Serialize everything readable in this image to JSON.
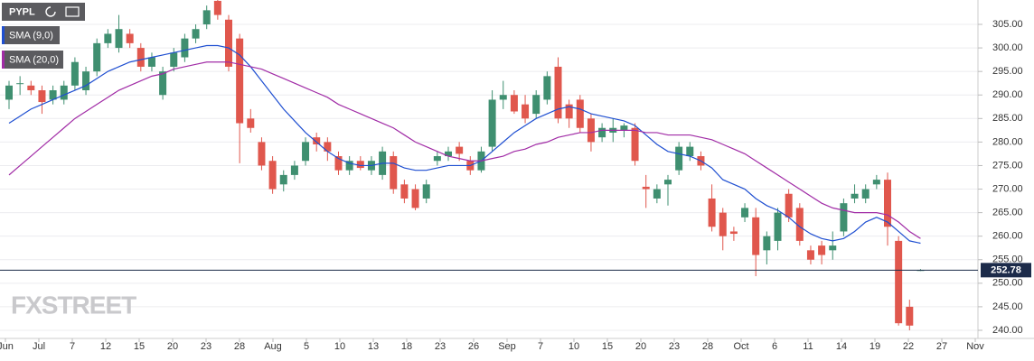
{
  "chart_data": {
    "type": "candlestick",
    "title": "PYPL",
    "colors": {
      "up": "#3f8f70",
      "down": "#e0574d"
    },
    "series": [
      {
        "name": "PYPL",
        "open": [
          289,
          292.5,
          292,
          291,
          289,
          289,
          292,
          291,
          295,
          301,
          300,
          303,
          300,
          296,
          290,
          296,
          298,
          302,
          305,
          310,
          306,
          302,
          285,
          280,
          276,
          271,
          273,
          276,
          281,
          280,
          277,
          274,
          276,
          274,
          273,
          277,
          271,
          270,
          268,
          276,
          277,
          279,
          276,
          274,
          279,
          289,
          290,
          288,
          286,
          289,
          296,
          288,
          289,
          285,
          281,
          282,
          282.5,
          283,
          270.5,
          268,
          271,
          274,
          277,
          277,
          268,
          265,
          261,
          264,
          264,
          257,
          259,
          269,
          266,
          257,
          258,
          257,
          261,
          268,
          268,
          271,
          272,
          259,
          245,
          252.8
        ],
        "high": [
          293,
          294,
          293,
          292,
          292,
          293,
          298,
          296,
          302,
          304,
          307,
          304,
          301,
          299,
          296,
          300,
          303,
          305,
          309,
          311,
          307,
          303,
          287,
          281,
          277,
          274,
          276,
          281,
          282,
          281,
          278,
          277,
          277,
          277,
          279,
          278,
          272,
          271,
          272,
          278,
          279,
          280,
          277,
          279,
          291,
          293,
          291,
          290,
          291,
          295,
          298,
          289,
          290,
          286,
          284,
          285,
          284,
          284,
          273,
          271,
          273,
          280,
          280,
          278,
          271,
          266,
          262,
          267,
          266,
          261,
          266,
          270,
          267,
          258,
          259,
          261,
          268,
          271,
          271,
          273,
          273.5,
          260,
          246.5,
          253
        ],
        "low": [
          287,
          290,
          290,
          286,
          288,
          288,
          291,
          290,
          294,
          300,
          299,
          300,
          295,
          295,
          289,
          295,
          297,
          301,
          304,
          306,
          295,
          275.5,
          282,
          274,
          269,
          269.5,
          272,
          275,
          278,
          276,
          273,
          273,
          274,
          273,
          272,
          269,
          267,
          265.5,
          267,
          275,
          276,
          276,
          273,
          273.5,
          278,
          287,
          286,
          284,
          285,
          288,
          284,
          283,
          282,
          278,
          280,
          280,
          281,
          275,
          266,
          267,
          266.5,
          273,
          276,
          274,
          261,
          257,
          259,
          263,
          251.5,
          254,
          257,
          263,
          258,
          254,
          254,
          255,
          260,
          267,
          267,
          270,
          258,
          241,
          240,
          252.6
        ],
        "close": [
          292,
          292.5,
          291,
          288.5,
          291,
          292,
          297,
          295,
          301,
          303,
          304,
          301,
          296,
          298,
          295,
          299,
          302,
          304,
          308,
          307,
          296,
          284,
          283,
          275,
          270,
          273,
          275,
          280,
          279.5,
          278,
          274,
          276,
          274.5,
          276,
          278,
          270,
          268,
          266,
          271,
          277,
          278,
          277.5,
          274,
          278,
          289,
          290,
          286.5,
          285,
          290,
          294,
          285,
          285,
          283,
          280,
          283,
          283,
          283.5,
          276,
          270,
          270,
          272,
          279,
          279,
          275,
          262,
          260,
          260.5,
          266,
          256,
          260,
          265,
          264,
          259,
          255,
          256,
          258,
          267,
          269,
          270,
          272,
          262,
          241.5,
          241,
          252.8
        ]
      }
    ],
    "indicators": [
      {
        "name": "SMA (9,0)",
        "color": "#1f4fd1",
        "values": [
          284,
          285.5,
          287,
          288,
          289,
          290,
          291,
          292,
          293.5,
          295,
          296,
          297,
          297.5,
          298,
          298.5,
          299,
          299.5,
          300,
          300.5,
          300.5,
          300,
          298.5,
          296,
          293,
          290,
          287,
          284.5,
          282,
          280,
          278,
          276.5,
          275.5,
          275,
          275,
          275.5,
          275.5,
          274.5,
          274,
          274,
          274.5,
          275,
          275,
          275,
          276,
          278,
          280,
          282,
          283.5,
          285,
          286,
          287,
          287.5,
          287,
          286,
          285.5,
          285,
          284.5,
          283.5,
          281.5,
          279.5,
          278,
          277.5,
          277,
          276,
          274.5,
          272,
          271,
          270,
          268,
          266.5,
          265.5,
          264,
          262,
          260.5,
          259.5,
          259,
          259.5,
          261,
          263,
          264,
          263,
          261,
          259,
          258.5
        ]
      },
      {
        "name": "SMA (20,0)",
        "color": "#a12ca6",
        "values": [
          273,
          275,
          277,
          279,
          281,
          283,
          285,
          286.5,
          288,
          289.5,
          291,
          292,
          293,
          294,
          294.5,
          295.5,
          296,
          296.5,
          297,
          297,
          297,
          296.5,
          296,
          295.5,
          294.5,
          293.5,
          292.5,
          291.5,
          290.5,
          289.5,
          288,
          287,
          286,
          285,
          284,
          283,
          281.5,
          280,
          279,
          278,
          277,
          276.5,
          276,
          276,
          276.5,
          277,
          278,
          278.5,
          279.5,
          280,
          281,
          281.5,
          282,
          282,
          282.5,
          282.5,
          282.5,
          282.5,
          282,
          282,
          281.5,
          281.5,
          281.5,
          281,
          280.5,
          279.5,
          278.5,
          277.5,
          276,
          274.5,
          273,
          271.5,
          270,
          268.5,
          267,
          266,
          265.5,
          265,
          265,
          265,
          264.5,
          263,
          261,
          259.5
        ]
      }
    ],
    "last_price": 252.78,
    "xtick_labels": [
      "Jun",
      "Jul",
      "7",
      "12",
      "15",
      "20",
      "23",
      "28",
      "Aug",
      "5",
      "10",
      "13",
      "18",
      "23",
      "26",
      "Sep",
      "7",
      "10",
      "15",
      "20",
      "23",
      "28",
      "Oct",
      "6",
      "11",
      "14",
      "19",
      "22",
      "27",
      "Nov"
    ],
    "ylim": [
      238.27,
      310.18
    ],
    "yticks": [
      {
        "value": 240,
        "label": "240.00"
      },
      {
        "value": 245,
        "label": "245.00"
      },
      {
        "value": 250,
        "label": "250.00"
      },
      {
        "value": 255,
        "label": "255.00"
      },
      {
        "value": 260,
        "label": "260.00"
      },
      {
        "value": 265,
        "label": "265.00"
      },
      {
        "value": 270,
        "label": "270.00"
      },
      {
        "value": 275,
        "label": "275.00"
      },
      {
        "value": 280,
        "label": "280.00"
      },
      {
        "value": 285,
        "label": "285.00"
      },
      {
        "value": 290,
        "label": "290.00"
      },
      {
        "value": 295,
        "label": "295.00"
      },
      {
        "value": 300,
        "label": "300.00"
      },
      {
        "value": 305,
        "label": "305.00"
      }
    ],
    "grid": true,
    "watermark": "FXSTREET"
  }
}
